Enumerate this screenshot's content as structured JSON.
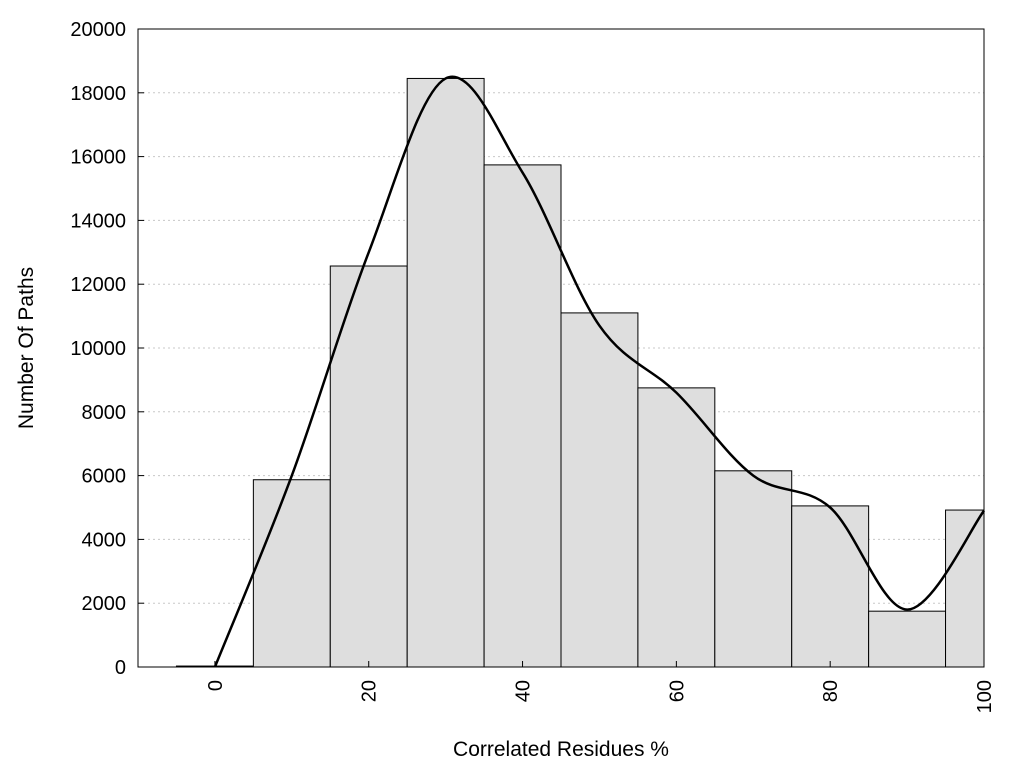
{
  "chart_data": {
    "type": "bar",
    "title": "",
    "xlabel": "Correlated Residues %",
    "ylabel": "Number Of Paths",
    "xlim": [
      -10,
      100
    ],
    "ylim": [
      0,
      20000
    ],
    "bin_width": 10,
    "bins": [
      {
        "center": 0,
        "count": 30
      },
      {
        "center": 10,
        "count": 5870
      },
      {
        "center": 20,
        "count": 12570
      },
      {
        "center": 30,
        "count": 18450
      },
      {
        "center": 40,
        "count": 15740
      },
      {
        "center": 50,
        "count": 11100
      },
      {
        "center": 60,
        "count": 8750
      },
      {
        "center": 70,
        "count": 6150
      },
      {
        "center": 80,
        "count": 5050
      },
      {
        "center": 90,
        "count": 1750
      },
      {
        "center": 100,
        "count": 4920
      }
    ],
    "curve": {
      "x": [
        0,
        10,
        20,
        30,
        40,
        50,
        60,
        70,
        80,
        90,
        100
      ],
      "y": [
        0,
        6000,
        13000,
        18450,
        15500,
        10700,
        8600,
        6000,
        5000,
        1800,
        4900
      ]
    },
    "x_ticks": [
      0,
      20,
      40,
      60,
      80,
      100
    ],
    "y_ticks": [
      0,
      2000,
      4000,
      6000,
      8000,
      10000,
      12000,
      14000,
      16000,
      18000,
      20000
    ],
    "grid": "horizontal dotted",
    "bar_color": "#dedede",
    "bar_edge_color": "#000000",
    "curve_color": "#000000",
    "legend": "none"
  }
}
